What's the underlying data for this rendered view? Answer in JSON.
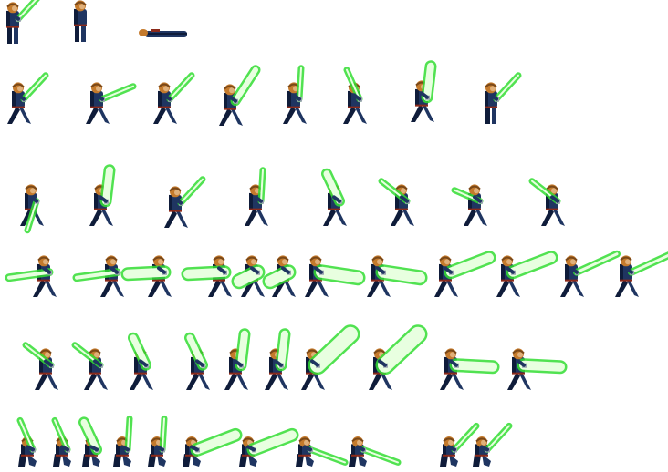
{
  "sheet": {
    "background": "#ffffff",
    "saber_glow": "#33dd33",
    "saber_core": "#e8ffe0",
    "body_color": "#1f3561",
    "body_shadow": "#0f1c3a",
    "head_color": "#c47a2c",
    "head_shadow": "#7a4818",
    "skin_color": "#e0b07a"
  },
  "sprites": [
    {
      "row": 1,
      "pose": "stand-saber",
      "saber": "up-right"
    },
    {
      "row": 1,
      "pose": "hurt",
      "saber": "none"
    },
    {
      "row": 1,
      "pose": "lying-down",
      "saber": "none"
    },
    {
      "row": 2,
      "pose": "run",
      "saber": "up-right"
    },
    {
      "row": 2,
      "pose": "run",
      "saber": "right-low"
    },
    {
      "row": 2,
      "pose": "run",
      "saber": "up-right"
    },
    {
      "row": 2,
      "pose": "run",
      "saber": "up-right-wide"
    },
    {
      "row": 2,
      "pose": "run",
      "saber": "up"
    },
    {
      "row": 2,
      "pose": "run",
      "saber": "up-left"
    },
    {
      "row": 2,
      "pose": "run",
      "saber": "up-wide"
    },
    {
      "row": 2,
      "pose": "stand",
      "saber": "up-right"
    },
    {
      "row": 3,
      "pose": "run",
      "saber": "down-left"
    },
    {
      "row": 3,
      "pose": "run",
      "saber": "up-wide"
    },
    {
      "row": 3,
      "pose": "run",
      "saber": "up-right"
    },
    {
      "row": 3,
      "pose": "run",
      "saber": "up"
    },
    {
      "row": 3,
      "pose": "run",
      "saber": "up-left-wide"
    },
    {
      "row": 3,
      "pose": "run",
      "saber": "left-up"
    },
    {
      "row": 3,
      "pose": "run",
      "saber": "left-down"
    },
    {
      "row": 3,
      "pose": "run",
      "saber": "left-up"
    },
    {
      "row": 4,
      "pose": "lunge",
      "saber": "left-sweep"
    },
    {
      "row": 4,
      "pose": "lunge",
      "saber": "left-sweep"
    },
    {
      "row": 4,
      "pose": "lunge",
      "saber": "left-wide"
    },
    {
      "row": 4,
      "pose": "lunge",
      "saber": "left-wide"
    },
    {
      "row": 4,
      "pose": "lunge",
      "saber": "down-burst"
    },
    {
      "row": 4,
      "pose": "lunge",
      "saber": "down-burst"
    },
    {
      "row": 4,
      "pose": "lunge",
      "saber": "right-burst"
    },
    {
      "row": 4,
      "pose": "lunge",
      "saber": "right-burst"
    },
    {
      "row": 4,
      "pose": "slash",
      "saber": "right-up-wide"
    },
    {
      "row": 4,
      "pose": "slash",
      "saber": "right-up-wide"
    },
    {
      "row": 4,
      "pose": "slash",
      "saber": "right-up"
    },
    {
      "row": 4,
      "pose": "slash",
      "saber": "right-up"
    },
    {
      "row": 5,
      "pose": "swing",
      "saber": "left-up"
    },
    {
      "row": 5,
      "pose": "swing",
      "saber": "left-up"
    },
    {
      "row": 5,
      "pose": "swing",
      "saber": "up-left-wide"
    },
    {
      "row": 5,
      "pose": "swing",
      "saber": "up-left-wide"
    },
    {
      "row": 5,
      "pose": "swing",
      "saber": "up-wide"
    },
    {
      "row": 5,
      "pose": "swing",
      "saber": "up-wide"
    },
    {
      "row": 5,
      "pose": "swing",
      "saber": "right-up-burst"
    },
    {
      "row": 5,
      "pose": "swing",
      "saber": "right-up-burst"
    },
    {
      "row": 5,
      "pose": "swing",
      "saber": "right-low-wide"
    },
    {
      "row": 5,
      "pose": "swing",
      "saber": "right-low-wide"
    },
    {
      "row": 6,
      "pose": "crouch",
      "saber": "up-left"
    },
    {
      "row": 6,
      "pose": "crouch",
      "saber": "up-left"
    },
    {
      "row": 6,
      "pose": "crouch",
      "saber": "up-left-wide"
    },
    {
      "row": 6,
      "pose": "crouch",
      "saber": "up"
    },
    {
      "row": 6,
      "pose": "crouch",
      "saber": "up"
    },
    {
      "row": 6,
      "pose": "crouch",
      "saber": "right-up-wide"
    },
    {
      "row": 6,
      "pose": "crouch",
      "saber": "right-up-wide"
    },
    {
      "row": 6,
      "pose": "crouch",
      "saber": "right-down"
    },
    {
      "row": 6,
      "pose": "crouch",
      "saber": "right-down"
    },
    {
      "row": 6,
      "pose": "crouch",
      "saber": "up-right"
    },
    {
      "row": 6,
      "pose": "crouch",
      "saber": "up-right"
    }
  ]
}
